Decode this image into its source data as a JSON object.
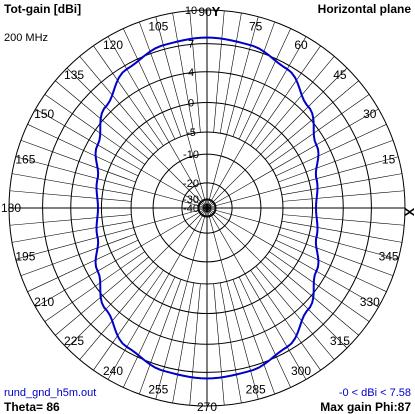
{
  "header": {
    "title": "Tot-gain [dBi]",
    "plane": "Horizontal plane",
    "frequency": "200 MHz"
  },
  "footer": {
    "file": "rund_gnd_h5m.out",
    "theta": "Theta= 86",
    "dbi_range": "-0 < dBi < 7.58",
    "max_gain": "Max gain Phi:87"
  },
  "colors": {
    "pattern": "#0000c8",
    "grid": "#000000",
    "annotation": "#0000c8"
  },
  "chart_data": {
    "type": "polar-line",
    "axis_markers": {
      "y_label": "Y",
      "x_label": "X"
    },
    "angle_ticks": [
      0,
      15,
      30,
      45,
      60,
      75,
      90,
      105,
      120,
      135,
      150,
      165,
      180,
      195,
      210,
      225,
      240,
      255,
      270,
      285,
      300,
      315,
      330,
      345
    ],
    "angle_labels": [
      "",
      "15",
      "30",
      "45",
      "60",
      "75",
      "90",
      "105",
      "120",
      "135",
      "150",
      "165",
      "180",
      "195",
      "210",
      "225",
      "240",
      "255",
      "270",
      "285",
      "300",
      "315",
      "330",
      "345"
    ],
    "radial_ticks_dbi": [
      10,
      7,
      4,
      0,
      -5,
      -10,
      -20,
      -30,
      -40
    ],
    "radial_tick_labels": [
      "10",
      "7",
      "4",
      "0",
      "-5",
      "-10",
      "-20",
      "-30",
      "-40"
    ],
    "radial_min_dbi": -40,
    "radial_max_dbi": 10,
    "series": [
      {
        "phi_deg": [
          0,
          15,
          30,
          45,
          60,
          75,
          90,
          105,
          120,
          135,
          150,
          165,
          180,
          195,
          210,
          225,
          240,
          255,
          270,
          285,
          300,
          315,
          330,
          345
        ],
        "gain_dbi": [
          0.5,
          1.1,
          2.8,
          4.8,
          6.6,
          7.4,
          7.58,
          7.4,
          6.6,
          4.8,
          2.8,
          1.1,
          0.5,
          1.1,
          2.8,
          4.8,
          6.6,
          7.4,
          7.58,
          7.4,
          6.6,
          4.8,
          2.8,
          1.1
        ]
      }
    ]
  }
}
